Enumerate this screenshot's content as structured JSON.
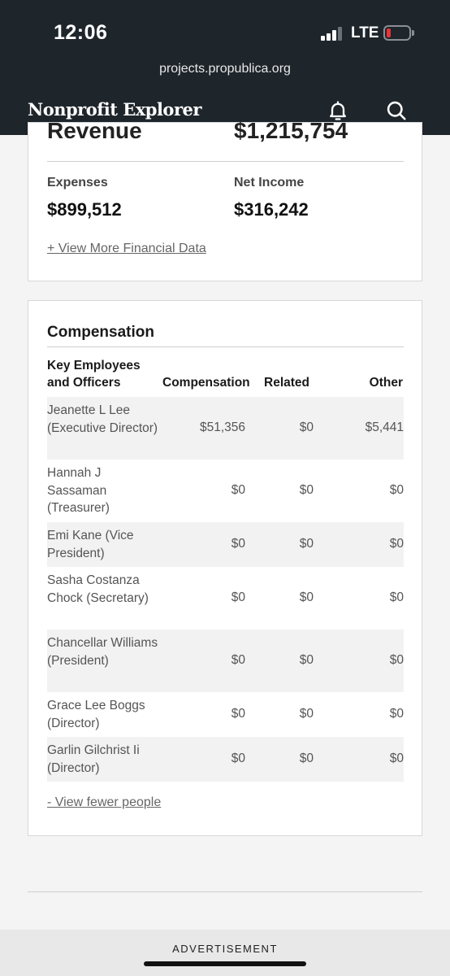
{
  "status_bar": {
    "time": "12:06",
    "network": "LTE"
  },
  "browser": {
    "url": "projects.propublica.org"
  },
  "header": {
    "title": "Nonprofit Explorer"
  },
  "financials": {
    "revenue_label_partial": "Revenue",
    "revenue_value_partial": "$1,215,754",
    "expenses_label": "Expenses",
    "expenses_value": "$899,512",
    "net_income_label": "Net Income",
    "net_income_value": "$316,242",
    "more_link": "+ View More Financial Data"
  },
  "compensation": {
    "title": "Compensation",
    "headers": {
      "name_line1": "Key Employees",
      "name_line2": "and Officers",
      "compensation": "Compensation",
      "related": "Related",
      "other": "Other"
    },
    "rows": [
      {
        "name": "Jeanette L Lee (Executive Director)",
        "compensation": "$51,356",
        "related": "$0",
        "other": "$5,441"
      },
      {
        "name": "Hannah J Sassaman (Treasurer)",
        "compensation": "$0",
        "related": "$0",
        "other": "$0"
      },
      {
        "name": "Emi Kane (Vice President)",
        "compensation": "$0",
        "related": "$0",
        "other": "$0"
      },
      {
        "name": "Sasha Costanza Chock (Secretary)",
        "compensation": "$0",
        "related": "$0",
        "other": "$0"
      },
      {
        "name": "Chancellar Williams (President)",
        "compensation": "$0",
        "related": "$0",
        "other": "$0"
      },
      {
        "name": "Grace Lee Boggs (Director)",
        "compensation": "$0",
        "related": "$0",
        "other": "$0"
      },
      {
        "name": "Garlin Gilchrist Ii (Director)",
        "compensation": "$0",
        "related": "$0",
        "other": "$0"
      }
    ],
    "fewer_link": "- View fewer people"
  },
  "ad": {
    "label": "ADVERTISEMENT"
  },
  "colors": {
    "header_bg": "#1e252b",
    "battery_low": "#e8323a",
    "row_shade": "#f2f2f2"
  }
}
